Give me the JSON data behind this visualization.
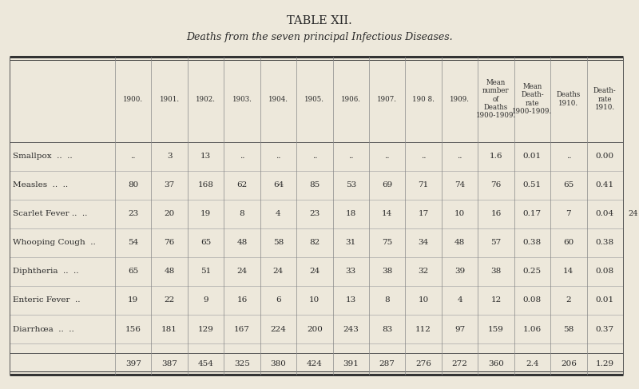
{
  "title": "TABLE XII.",
  "subtitle": "Deaths from the seven principal Infectious Diseases.",
  "background_color": "#ede8db",
  "text_color": "#2a2a2a",
  "col_headers_line1": [
    "1900.",
    "1901.",
    "1902.",
    "1903.",
    "1904.",
    "1905.",
    "1906.",
    "1907.",
    "190 8.",
    "1909.",
    "Mean\nnumber\nof\nDeaths\n1900-1909.",
    "Mean\nDeath-\nrate\n1900-1909.",
    "Deaths\n1910.",
    "Death-\nrate\n1910."
  ],
  "row_labels": [
    [
      "Smallpox",
      "..",
      ".."
    ],
    [
      "Measles",
      "..",
      ".."
    ],
    [
      "Scarlet Fever ..",
      ".."
    ],
    [
      "Whooping Cough",
      ".."
    ],
    [
      "Diphtheria",
      "..",
      ".."
    ],
    [
      "Enteric Fever",
      ".."
    ],
    [
      "Diarrhœa",
      "..",
      ".."
    ]
  ],
  "data": [
    [
      "..",
      "3",
      "13",
      "..",
      "..",
      "..",
      "..",
      "..",
      "..",
      "..",
      "1.6",
      "0.01",
      "..",
      "0.00"
    ],
    [
      "80",
      "37",
      "168",
      "62",
      "64",
      "85",
      "53",
      "69",
      "71",
      "74",
      "76",
      "0.51",
      "65",
      "0.41"
    ],
    [
      "23",
      "20",
      "19",
      "8",
      "4",
      "23",
      "18",
      "14",
      "17",
      "10",
      "16",
      "0.17",
      "7",
      "0.04"
    ],
    [
      "54",
      "76",
      "65",
      "48",
      "58",
      "82",
      "31",
      "75",
      "34",
      "48",
      "57",
      "0.38",
      "60",
      "0.38"
    ],
    [
      "65",
      "48",
      "51",
      "24",
      "24",
      "24",
      "33",
      "38",
      "32",
      "39",
      "38",
      "0.25",
      "14",
      "0.08"
    ],
    [
      "19",
      "22",
      "9",
      "16",
      "6",
      "10",
      "13",
      "8",
      "10",
      "4",
      "12",
      "0.08",
      "2",
      "0.01"
    ],
    [
      "156",
      "181",
      "129",
      "167",
      "224",
      "200",
      "243",
      "83",
      "112",
      "97",
      "159",
      "1.06",
      "58",
      "0.37"
    ]
  ],
  "totals": [
    "397",
    "387",
    "454",
    "325",
    "380",
    "424",
    "391",
    "287",
    "276",
    "272",
    "360",
    "2.4",
    "206",
    "1.29"
  ],
  "side_note": "24"
}
